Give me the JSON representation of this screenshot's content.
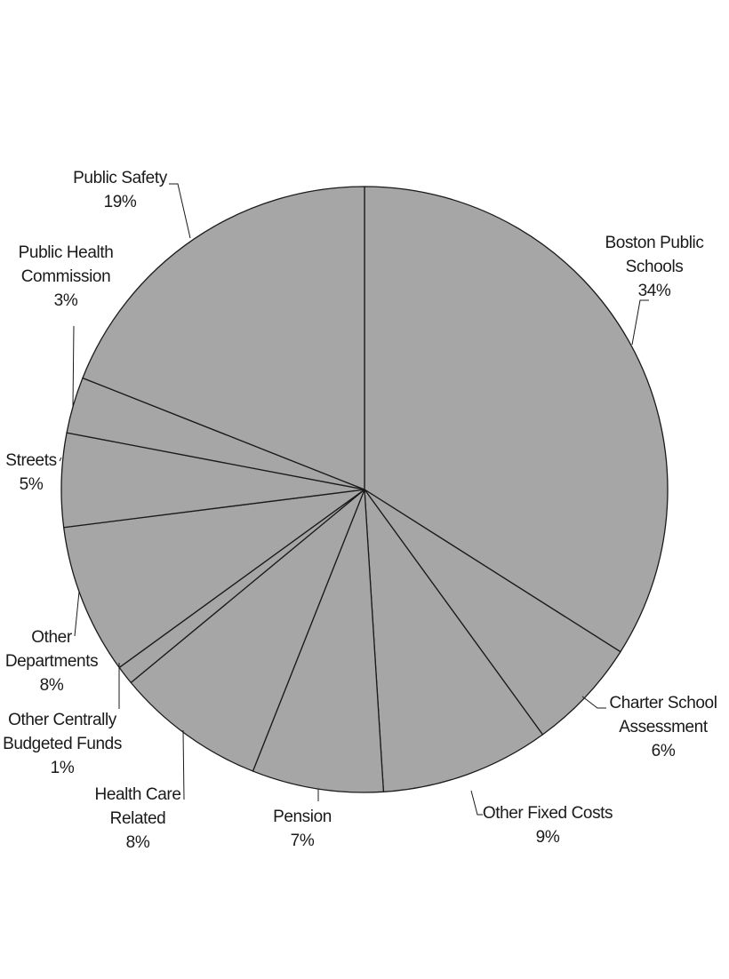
{
  "colors": {
    "slice_fill": "#a6a6a6",
    "slice_stroke": "#1a1a1a",
    "background": "#ffffff",
    "text": "#1a1a1a"
  },
  "chart_data": {
    "type": "pie",
    "title": "",
    "slices": [
      {
        "label": "Boston Public Schools",
        "value": 34,
        "display": "34%",
        "label_lines": [
          "Boston Public",
          "Schools",
          "34%"
        ]
      },
      {
        "label": "Charter School Assessment",
        "value": 6,
        "display": "6%",
        "label_lines": [
          "Charter School",
          "Assessment",
          "6%"
        ]
      },
      {
        "label": "Other Fixed Costs",
        "value": 9,
        "display": "9%",
        "label_lines": [
          "Other Fixed Costs",
          "9%"
        ]
      },
      {
        "label": "Pension",
        "value": 7,
        "display": "7%",
        "label_lines": [
          "Pension",
          "7%"
        ]
      },
      {
        "label": "Health Care Related",
        "value": 8,
        "display": "8%",
        "label_lines": [
          "Health Care",
          "Related",
          "8%"
        ]
      },
      {
        "label": "Other Centrally Budgeted Funds",
        "value": 1,
        "display": "1%",
        "label_lines": [
          "Other Centrally",
          "Budgeted Funds",
          "1%"
        ]
      },
      {
        "label": "Other Departments",
        "value": 8,
        "display": "8%",
        "label_lines": [
          "Other",
          "Departments",
          "8%"
        ]
      },
      {
        "label": "Streets",
        "value": 5,
        "display": "5%",
        "label_lines": [
          "Streets",
          "5%"
        ]
      },
      {
        "label": "Public Health Commission",
        "value": 3,
        "display": "3%",
        "label_lines": [
          "Public Health",
          "Commission",
          "3%"
        ]
      },
      {
        "label": "Public Safety",
        "value": 19,
        "display": "19%",
        "label_lines": [
          "Public Safety",
          "19%"
        ]
      }
    ],
    "start_angle": "12 o'clock",
    "direction": "clockwise",
    "legend": "none"
  }
}
